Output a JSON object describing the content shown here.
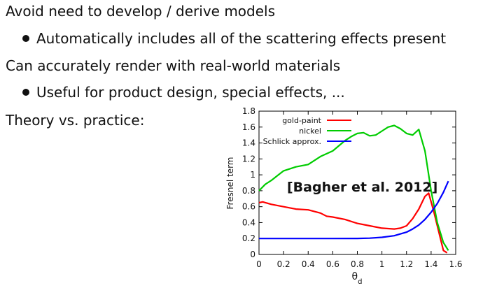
{
  "slide": {
    "points": [
      "Avoid need to develop / derive models",
      "Automatically includes all of the scattering effects present",
      "Can accurately render with real-world materials",
      "Useful for product design, special effects, ...",
      "Theory vs. practice:"
    ]
  },
  "chart_data": {
    "type": "line",
    "xlabel": "θd",
    "ylabel": "Fresnel term",
    "xlim": [
      0,
      1.6
    ],
    "ylim": [
      0,
      1.8
    ],
    "x_ticks": [
      "0",
      "0.2",
      "0.4",
      "0.6",
      "0.8",
      "1",
      "1.2",
      "1.4",
      "1.6"
    ],
    "y_ticks": [
      "0",
      "0.2",
      "0.4",
      "0.6",
      "0.8",
      "1",
      "1.2",
      "1.4",
      "1.6",
      "1.8"
    ],
    "legend_position": "top-right",
    "annotation": "[Bagher et al. 2012]",
    "grid": false,
    "series": [
      {
        "name": "gold-paint",
        "color": "#ff0000",
        "x": [
          0,
          0.03,
          0.1,
          0.2,
          0.3,
          0.4,
          0.5,
          0.55,
          0.6,
          0.7,
          0.8,
          0.9,
          1.0,
          1.1,
          1.15,
          1.2,
          1.25,
          1.3,
          1.35,
          1.38,
          1.42,
          1.46,
          1.5,
          1.53
        ],
        "y": [
          0.65,
          0.66,
          0.63,
          0.6,
          0.57,
          0.56,
          0.52,
          0.48,
          0.47,
          0.44,
          0.39,
          0.36,
          0.33,
          0.32,
          0.33,
          0.36,
          0.45,
          0.57,
          0.73,
          0.77,
          0.55,
          0.3,
          0.05,
          0.02
        ]
      },
      {
        "name": "nickel",
        "color": "#00cc00",
        "x": [
          0,
          0.05,
          0.1,
          0.15,
          0.2,
          0.3,
          0.4,
          0.5,
          0.6,
          0.7,
          0.75,
          0.8,
          0.85,
          0.9,
          0.95,
          1.0,
          1.05,
          1.1,
          1.15,
          1.2,
          1.25,
          1.3,
          1.35,
          1.4,
          1.45,
          1.5,
          1.54
        ],
        "y": [
          0.8,
          0.88,
          0.93,
          0.99,
          1.05,
          1.1,
          1.13,
          1.23,
          1.3,
          1.43,
          1.48,
          1.52,
          1.53,
          1.49,
          1.5,
          1.55,
          1.6,
          1.62,
          1.58,
          1.52,
          1.5,
          1.57,
          1.3,
          0.8,
          0.4,
          0.15,
          0.05
        ]
      },
      {
        "name": "Schlick approx.",
        "color": "#0000ff",
        "x": [
          0,
          0.2,
          0.4,
          0.6,
          0.8,
          0.9,
          1.0,
          1.1,
          1.2,
          1.25,
          1.3,
          1.35,
          1.4,
          1.45,
          1.5,
          1.54
        ],
        "y": [
          0.2,
          0.2,
          0.2,
          0.2,
          0.201,
          0.205,
          0.215,
          0.235,
          0.28,
          0.32,
          0.37,
          0.44,
          0.53,
          0.64,
          0.78,
          0.92
        ]
      }
    ]
  }
}
